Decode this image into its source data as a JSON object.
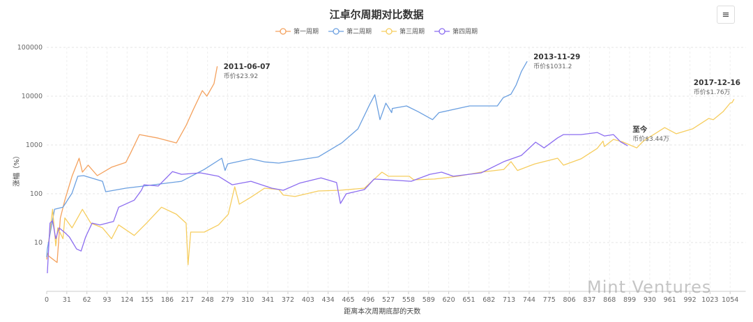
{
  "chart_data": {
    "type": "line",
    "title": "江卓尔周期对比数据",
    "xlabel": "距离本次周期底部的天数",
    "ylabel": "涨幅（%）",
    "y_scale": "log",
    "ylim": [
      1,
      100000
    ],
    "yticks": [
      "10",
      "100",
      "1000",
      "10000",
      "100000"
    ],
    "xlim": [
      0,
      1078
    ],
    "xticks": [
      "0",
      "31",
      "62",
      "93",
      "124",
      "155",
      "186",
      "217",
      "248",
      "279",
      "310",
      "341",
      "372",
      "403",
      "434",
      "465",
      "496",
      "527",
      "558",
      "589",
      "620",
      "651",
      "682",
      "713",
      "744",
      "775",
      "806",
      "837",
      "868",
      "899",
      "930",
      "961",
      "992",
      "1023",
      "1054"
    ],
    "grid": true,
    "legend_position": "top",
    "series": [
      {
        "name": "第一周期",
        "color": "#f4a15d",
        "annotation": {
          "date": "2011-06-07",
          "price": "币价$23.92"
        },
        "points": [
          [
            0,
            4.5
          ],
          [
            1,
            6.1
          ],
          [
            3,
            5.3
          ],
          [
            16,
            3.9
          ],
          [
            21,
            31.6
          ],
          [
            28,
            74
          ],
          [
            39,
            228
          ],
          [
            50,
            535
          ],
          [
            55,
            277
          ],
          [
            64,
            385
          ],
          [
            78,
            235
          ],
          [
            100,
            350
          ],
          [
            122,
            440
          ],
          [
            129,
            670
          ],
          [
            143,
            1630
          ],
          [
            172,
            1380
          ],
          [
            200,
            1100
          ],
          [
            215,
            2500
          ],
          [
            226,
            5300
          ],
          [
            240,
            13000
          ],
          [
            247,
            10000
          ],
          [
            258,
            18000
          ],
          [
            263,
            41000
          ]
        ]
      },
      {
        "name": "第二周期",
        "color": "#6a9fe0",
        "annotation": {
          "date": "2013-11-29",
          "price": "币价$1031.2"
        },
        "points": [
          [
            0,
            5
          ],
          [
            1,
            7.4
          ],
          [
            12,
            48
          ],
          [
            25,
            53
          ],
          [
            39,
            103
          ],
          [
            48,
            228
          ],
          [
            57,
            235
          ],
          [
            86,
            180
          ],
          [
            91,
            110
          ],
          [
            122,
            130
          ],
          [
            150,
            144
          ],
          [
            208,
            180
          ],
          [
            243,
            315
          ],
          [
            270,
            535
          ],
          [
            275,
            300
          ],
          [
            279,
            410
          ],
          [
            315,
            520
          ],
          [
            336,
            450
          ],
          [
            358,
            425
          ],
          [
            419,
            570
          ],
          [
            455,
            1100
          ],
          [
            480,
            2140
          ],
          [
            498,
            6700
          ],
          [
            506,
            10700
          ],
          [
            514,
            3300
          ],
          [
            523,
            7200
          ],
          [
            532,
            4600
          ],
          [
            533,
            5600
          ],
          [
            555,
            6300
          ],
          [
            573,
            4800
          ],
          [
            595,
            3300
          ],
          [
            605,
            4600
          ],
          [
            652,
            6300
          ],
          [
            695,
            6300
          ],
          [
            704,
            9300
          ],
          [
            716,
            11000
          ],
          [
            724,
            17000
          ],
          [
            732,
            32000
          ],
          [
            741,
            52000
          ]
        ]
      },
      {
        "name": "第三周期",
        "color": "#f6cd5e",
        "annotation": {
          "date": "2017-12-16",
          "price": "币价$1.76万"
        },
        "points": [
          [
            3,
            10.3
          ],
          [
            9,
            48
          ],
          [
            14,
            8.5
          ],
          [
            17,
            20
          ],
          [
            25,
            12
          ],
          [
            28,
            32
          ],
          [
            39,
            20
          ],
          [
            55,
            48
          ],
          [
            68,
            25
          ],
          [
            86,
            20
          ],
          [
            100,
            12
          ],
          [
            111,
            23
          ],
          [
            135,
            14
          ],
          [
            154,
            25
          ],
          [
            177,
            53
          ],
          [
            200,
            38
          ],
          [
            215,
            25
          ],
          [
            218,
            3.5
          ],
          [
            222,
            16.4
          ],
          [
            243,
            16.4
          ],
          [
            265,
            23
          ],
          [
            280,
            38
          ],
          [
            290,
            139
          ],
          [
            297,
            61
          ],
          [
            315,
            85
          ],
          [
            336,
            130
          ],
          [
            358,
            122
          ],
          [
            365,
            94
          ],
          [
            383,
            88
          ],
          [
            419,
            114
          ],
          [
            452,
            118
          ],
          [
            490,
            130
          ],
          [
            517,
            277
          ],
          [
            527,
            228
          ],
          [
            559,
            228
          ],
          [
            566,
            193
          ],
          [
            598,
            200
          ],
          [
            634,
            228
          ],
          [
            670,
            277
          ],
          [
            705,
            315
          ],
          [
            716,
            455
          ],
          [
            726,
            300
          ],
          [
            753,
            410
          ],
          [
            788,
            535
          ],
          [
            797,
            385
          ],
          [
            824,
            520
          ],
          [
            849,
            850
          ],
          [
            858,
            1200
          ],
          [
            860,
            930
          ],
          [
            874,
            1300
          ],
          [
            888,
            1160
          ],
          [
            910,
            870
          ],
          [
            920,
            1200
          ],
          [
            953,
            2270
          ],
          [
            971,
            1700
          ],
          [
            996,
            2140
          ],
          [
            1021,
            3500
          ],
          [
            1028,
            3300
          ],
          [
            1043,
            4800
          ],
          [
            1054,
            7200
          ],
          [
            1057,
            7400
          ],
          [
            1060,
            8700
          ]
        ]
      },
      {
        "name": "第四周期",
        "color": "#8b6cf0",
        "annotation": {
          "date": "至今",
          "price": "币价$3.44万"
        },
        "points": [
          [
            1,
            2.35
          ],
          [
            5,
            25
          ],
          [
            9,
            28
          ],
          [
            14,
            12
          ],
          [
            19,
            20
          ],
          [
            28,
            16
          ],
          [
            35,
            13
          ],
          [
            46,
            7.4
          ],
          [
            53,
            6.7
          ],
          [
            60,
            13
          ],
          [
            70,
            25
          ],
          [
            82,
            23
          ],
          [
            103,
            27
          ],
          [
            111,
            53
          ],
          [
            135,
            74
          ],
          [
            146,
            118
          ],
          [
            150,
            153
          ],
          [
            172,
            144
          ],
          [
            194,
            285
          ],
          [
            208,
            250
          ],
          [
            237,
            268
          ],
          [
            265,
            228
          ],
          [
            286,
            153
          ],
          [
            315,
            180
          ],
          [
            347,
            130
          ],
          [
            365,
            118
          ],
          [
            390,
            165
          ],
          [
            423,
            212
          ],
          [
            447,
            170
          ],
          [
            453,
            63
          ],
          [
            462,
            100
          ],
          [
            490,
            122
          ],
          [
            505,
            200
          ],
          [
            527,
            193
          ],
          [
            562,
            180
          ],
          [
            591,
            250
          ],
          [
            609,
            277
          ],
          [
            627,
            228
          ],
          [
            670,
            268
          ],
          [
            705,
            455
          ],
          [
            732,
            610
          ],
          [
            754,
            1140
          ],
          [
            767,
            870
          ],
          [
            788,
            1400
          ],
          [
            797,
            1630
          ],
          [
            824,
            1630
          ],
          [
            849,
            1800
          ],
          [
            860,
            1530
          ],
          [
            874,
            1630
          ],
          [
            885,
            1160
          ],
          [
            896,
            960
          ]
        ]
      }
    ]
  },
  "toolbar": {
    "menu_icon": "hamburger-menu-icon",
    "menu_glyph": "≡"
  },
  "watermark": "Mint Ventures"
}
